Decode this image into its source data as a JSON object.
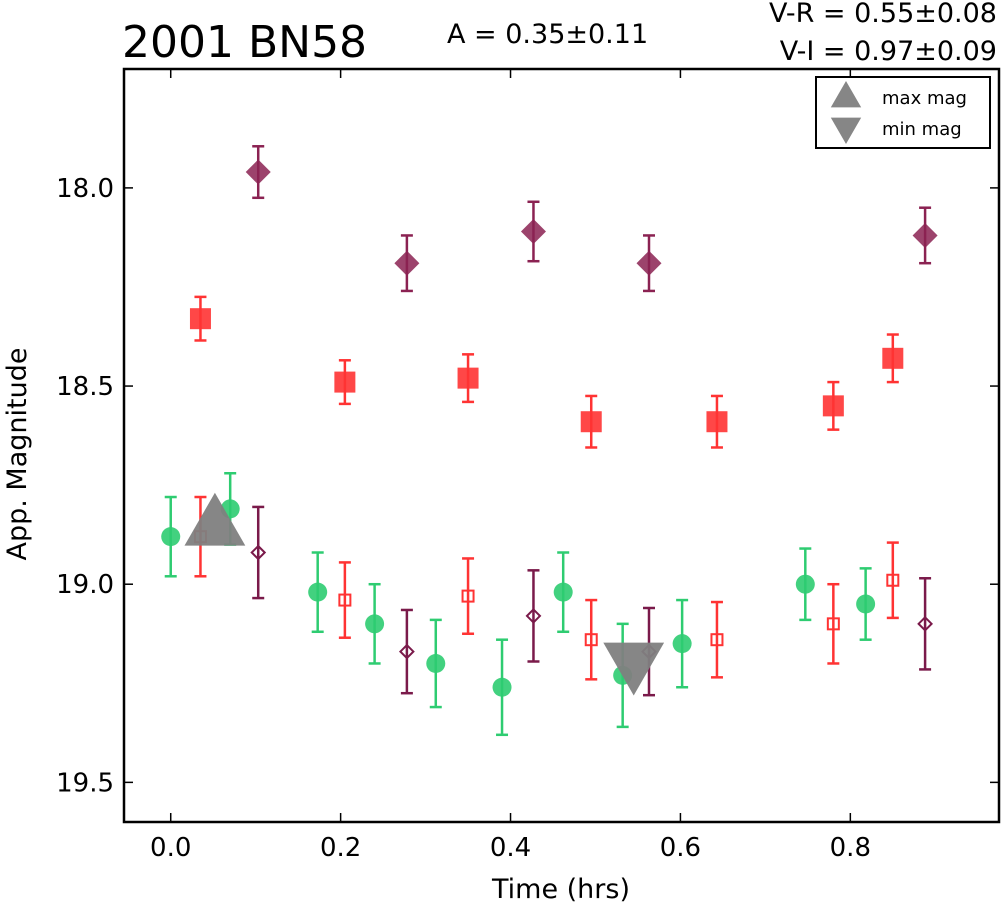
{
  "chart_data": {
    "type": "scatter",
    "title": "2001 BN58",
    "annotations": {
      "amplitude": "A  = 0.35±0.11",
      "v_r": "V-R = 0.55±0.08",
      "v_i": "V-I  = 0.97±0.09"
    },
    "xlabel": "Time (hrs)",
    "ylabel": "App. Magnitude",
    "xlim": [
      -0.055,
      0.975
    ],
    "ylim": [
      19.6,
      17.7
    ],
    "y_inverted": true,
    "x_ticks": [
      "0.0",
      "0.2",
      "0.4",
      "0.6",
      "0.8"
    ],
    "y_ticks": [
      "18.0",
      "18.5",
      "19.0",
      "19.5"
    ],
    "legend": {
      "placement": "top-right",
      "entries": [
        {
          "name": "max mag",
          "marker": "triangle-up",
          "color": "#808080"
        },
        {
          "name": "min mag",
          "marker": "triangle-down",
          "color": "#808080"
        }
      ]
    },
    "series": [
      {
        "marker": "circle",
        "filled": true,
        "color": "#2ecc71",
        "points": [
          {
            "x": 0.0,
            "y": 18.88,
            "err": 0.1
          },
          {
            "x": 0.07,
            "y": 18.81,
            "err": 0.09
          },
          {
            "x": 0.173,
            "y": 19.02,
            "err": 0.1
          },
          {
            "x": 0.24,
            "y": 19.1,
            "err": 0.1
          },
          {
            "x": 0.312,
            "y": 19.2,
            "err": 0.11
          },
          {
            "x": 0.39,
            "y": 19.26,
            "err": 0.12
          },
          {
            "x": 0.462,
            "y": 19.02,
            "err": 0.1
          },
          {
            "x": 0.532,
            "y": 19.23,
            "err": 0.13
          },
          {
            "x": 0.602,
            "y": 19.15,
            "err": 0.11
          },
          {
            "x": 0.747,
            "y": 19.0,
            "err": 0.09
          },
          {
            "x": 0.818,
            "y": 19.05,
            "err": 0.09
          }
        ]
      },
      {
        "marker": "square",
        "filled": true,
        "color": "#ff3333",
        "points": [
          {
            "x": 0.035,
            "y": 18.33,
            "err": 0.055
          },
          {
            "x": 0.205,
            "y": 18.49,
            "err": 0.055
          },
          {
            "x": 0.35,
            "y": 18.48,
            "err": 0.06
          },
          {
            "x": 0.495,
            "y": 18.59,
            "err": 0.065
          },
          {
            "x": 0.643,
            "y": 18.59,
            "err": 0.065
          },
          {
            "x": 0.78,
            "y": 18.55,
            "err": 0.06
          },
          {
            "x": 0.85,
            "y": 18.43,
            "err": 0.06
          }
        ]
      },
      {
        "marker": "diamond",
        "filled": true,
        "color": "#8b2252",
        "points": [
          {
            "x": 0.103,
            "y": 17.96,
            "err": 0.065
          },
          {
            "x": 0.278,
            "y": 18.19,
            "err": 0.07
          },
          {
            "x": 0.427,
            "y": 18.11,
            "err": 0.075
          },
          {
            "x": 0.563,
            "y": 18.19,
            "err": 0.07
          },
          {
            "x": 0.888,
            "y": 18.12,
            "err": 0.07
          }
        ]
      },
      {
        "marker": "square",
        "filled": false,
        "color": "#ff3333",
        "points": [
          {
            "x": 0.035,
            "y": 18.88,
            "err": 0.1
          },
          {
            "x": 0.205,
            "y": 19.04,
            "err": 0.095
          },
          {
            "x": 0.35,
            "y": 19.03,
            "err": 0.095
          },
          {
            "x": 0.495,
            "y": 19.14,
            "err": 0.1
          },
          {
            "x": 0.643,
            "y": 19.14,
            "err": 0.095
          },
          {
            "x": 0.78,
            "y": 19.1,
            "err": 0.1
          },
          {
            "x": 0.85,
            "y": 18.99,
            "err": 0.095
          }
        ]
      },
      {
        "marker": "diamond",
        "filled": false,
        "color": "#7a1a4a",
        "points": [
          {
            "x": 0.103,
            "y": 18.92,
            "err": 0.115
          },
          {
            "x": 0.278,
            "y": 19.17,
            "err": 0.105
          },
          {
            "x": 0.427,
            "y": 19.08,
            "err": 0.115
          },
          {
            "x": 0.563,
            "y": 19.17,
            "err": 0.11
          },
          {
            "x": 0.888,
            "y": 19.1,
            "err": 0.115
          }
        ]
      },
      {
        "marker": "triangle-up",
        "filled": true,
        "color": "#808080",
        "points": [
          {
            "x": 0.052,
            "y": 18.85
          }
        ]
      },
      {
        "marker": "triangle-down",
        "filled": true,
        "color": "#808080",
        "points": [
          {
            "x": 0.545,
            "y": 19.2
          }
        ]
      }
    ]
  }
}
